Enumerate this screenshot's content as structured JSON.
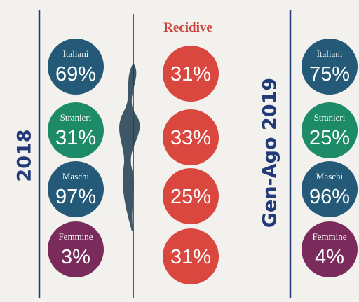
{
  "left": {
    "year": "2018",
    "items": [
      {
        "label": "Italiani",
        "value": "69%"
      },
      {
        "label": "Stranieri",
        "value": "31%"
      },
      {
        "label": "Maschi",
        "value": "97%"
      },
      {
        "label": "Femmine",
        "value": "3%"
      }
    ]
  },
  "recidive": {
    "title": "Recidive",
    "values": [
      "31%",
      "33%",
      "25%",
      "31%"
    ]
  },
  "right": {
    "year": "Gen-Ago 2019",
    "items": [
      {
        "label": "Italiani",
        "value": "75%"
      },
      {
        "label": "Stranieri",
        "value": "25%"
      },
      {
        "label": "Maschi",
        "value": "96%"
      },
      {
        "label": "Femmine",
        "value": "4%"
      }
    ]
  }
}
